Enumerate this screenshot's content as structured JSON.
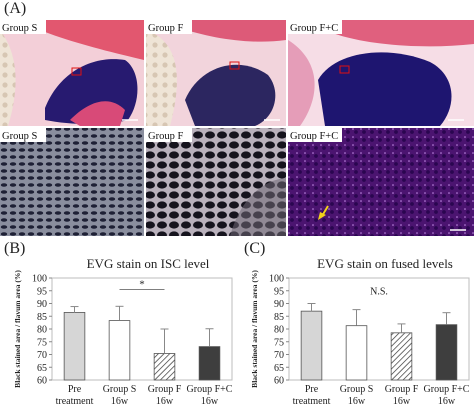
{
  "figure": {
    "panel_a_label": "(A)",
    "panel_b_label": "(B)",
    "panel_c_label": "(C)",
    "micrographs": [
      {
        "label": "Group S"
      },
      {
        "label": "Group F"
      },
      {
        "label": "Group F+C"
      },
      {
        "label": "Group S"
      },
      {
        "label": "Group F"
      },
      {
        "label": "Group F+C"
      }
    ]
  },
  "chart_data": [
    {
      "type": "bar",
      "title": "EVG stain on ISC level",
      "ylabel": "Black stained area / flavum area (%)",
      "xlabel": "",
      "categories": [
        "Pre treatment",
        "Group S 16w",
        "Group F 16w",
        "Group F+C 16w"
      ],
      "category_lines": [
        [
          "Pre",
          "treatment"
        ],
        [
          "Group S",
          "16w"
        ],
        [
          "Group F",
          "16w"
        ],
        [
          "Group F+C",
          "16w"
        ]
      ],
      "values": [
        86.5,
        83.3,
        70.4,
        73.1
      ],
      "errors": [
        2.3,
        5.6,
        9.6,
        7.0
      ],
      "fills": [
        "light-gray",
        "white",
        "hatched",
        "dark-gray"
      ],
      "ylim": [
        60,
        100
      ],
      "yticks": [
        60,
        65,
        70,
        75,
        80,
        85,
        90,
        95,
        100
      ],
      "grid": false,
      "annotations": [
        {
          "text": "*",
          "from_category": 1,
          "to_category": 2,
          "y": 95.5
        }
      ]
    },
    {
      "type": "bar",
      "title": "EVG stain on fused levels",
      "ylabel": "Black stained area / flavum area (%)",
      "xlabel": "",
      "categories": [
        "Pre treatment",
        "Group S 16w",
        "Group F 16w",
        "Group F+C 16w"
      ],
      "category_lines": [
        [
          "Pre",
          "treatment"
        ],
        [
          "Group S",
          "16w"
        ],
        [
          "Group F",
          "16w"
        ],
        [
          "Group F+C",
          "16w"
        ]
      ],
      "values": [
        87.0,
        81.3,
        78.5,
        81.7
      ],
      "errors": [
        3.0,
        6.3,
        3.5,
        4.7
      ],
      "fills": [
        "light-gray",
        "white",
        "hatched",
        "dark-gray"
      ],
      "ylim": [
        60,
        100
      ],
      "yticks": [
        60,
        65,
        70,
        75,
        80,
        85,
        90,
        95,
        100
      ],
      "grid": false,
      "annotations": [
        {
          "text": "N.S.",
          "from_category": 0,
          "to_category": 3,
          "y": 93.5
        }
      ]
    }
  ]
}
